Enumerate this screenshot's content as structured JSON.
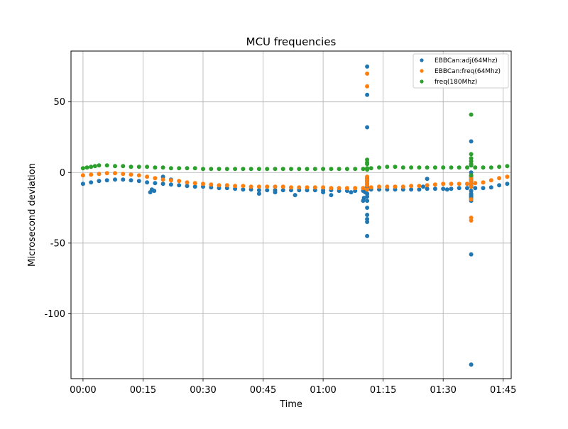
{
  "chart_data": {
    "type": "scatter",
    "title": "MCU frequencies",
    "xlabel": "Time",
    "ylabel": "Microsecond deviation",
    "x_unit": "minutes",
    "xlim": [
      -3,
      107
    ],
    "ylim": [
      -146,
      86
    ],
    "x_ticks": [
      {
        "value": 0,
        "label": "00:00"
      },
      {
        "value": 15,
        "label": "00:15"
      },
      {
        "value": 30,
        "label": "00:30"
      },
      {
        "value": 45,
        "label": "00:45"
      },
      {
        "value": 60,
        "label": "01:00"
      },
      {
        "value": 75,
        "label": "01:15"
      },
      {
        "value": 90,
        "label": "01:30"
      },
      {
        "value": 105,
        "label": "01:45"
      }
    ],
    "y_ticks": [
      {
        "value": 50,
        "label": "50"
      },
      {
        "value": 0,
        "label": "0"
      },
      {
        "value": -50,
        "label": "-50"
      },
      {
        "value": -100,
        "label": "-100"
      }
    ],
    "grid": true,
    "legend_position": "top-right",
    "series": [
      {
        "name": "EBBCan:adj(64Mhz)",
        "color": "#1f77b4",
        "x": [
          0,
          2,
          4,
          6,
          8,
          10,
          12,
          14,
          16,
          18,
          20,
          22,
          24,
          26,
          28,
          30,
          32,
          34,
          36,
          38,
          40,
          42,
          44,
          46,
          48,
          50,
          52,
          54,
          56,
          58,
          60,
          62,
          64,
          66,
          68,
          70,
          72,
          74,
          76,
          78,
          80,
          82,
          84,
          86,
          88,
          90,
          92,
          94,
          96,
          98,
          100,
          102,
          104,
          106,
          16.8,
          17.2,
          17.8,
          20,
          22,
          44,
          48,
          53,
          60,
          62,
          67,
          70,
          70.2,
          70.5,
          71,
          71,
          71,
          71,
          71,
          71,
          71,
          71,
          71,
          71,
          71,
          71,
          71,
          71,
          71,
          71,
          85,
          86,
          91,
          97,
          97,
          97,
          97,
          97,
          97,
          97,
          97,
          97,
          97,
          97,
          97,
          97,
          97,
          97,
          97,
          97
        ],
        "y": [
          -8,
          -7,
          -6,
          -5.5,
          -5,
          -5,
          -5.5,
          -6,
          -7,
          -7.5,
          -8,
          -8.5,
          -9,
          -9.5,
          -10,
          -10,
          -10.5,
          -11,
          -11,
          -11.5,
          -12,
          -12,
          -12.5,
          -12.5,
          -12.5,
          -12.5,
          -12.5,
          -12.5,
          -12.5,
          -12.5,
          -12.5,
          -12.5,
          -13,
          -13,
          -13,
          -13,
          -12,
          -12,
          -12,
          -12,
          -12,
          -12,
          -12,
          -11.5,
          -11.5,
          -11.5,
          -11.5,
          -11,
          -11,
          -11,
          -11,
          -10.5,
          -9,
          -8,
          -14,
          -12,
          -13,
          -3,
          -5,
          -15,
          -14,
          -16,
          -14,
          -16,
          -14,
          -20,
          -18,
          -14,
          75,
          55,
          32,
          -45,
          -30,
          -33,
          -35,
          -25,
          -20,
          -17,
          -15,
          -12,
          -10,
          -8,
          -6,
          -4,
          -10,
          -4.5,
          -12,
          22,
          5,
          0,
          -5,
          -10,
          -13,
          -15,
          -16,
          -18,
          -17,
          -20,
          -58,
          -136,
          -3,
          -6,
          -8,
          -9
        ],
        "values_source": "approximate, read from plot"
      },
      {
        "name": "EBBCan:freq(64Mhz)",
        "color": "#ff7f0e",
        "x": [
          0,
          2,
          4,
          6,
          8,
          10,
          12,
          14,
          16,
          18,
          20,
          22,
          24,
          26,
          28,
          30,
          32,
          34,
          36,
          38,
          40,
          42,
          44,
          46,
          48,
          50,
          52,
          54,
          56,
          58,
          60,
          62,
          64,
          66,
          68,
          70,
          72,
          74,
          76,
          78,
          80,
          82,
          84,
          86,
          88,
          90,
          92,
          94,
          96,
          98,
          100,
          102,
          104,
          106,
          71,
          71,
          71,
          71,
          71,
          71,
          71,
          97,
          97,
          97,
          97,
          97,
          97,
          97,
          97
        ],
        "y": [
          -2,
          -1.5,
          -1,
          -0.5,
          -0.5,
          -1,
          -1.5,
          -2,
          -3,
          -4,
          -5,
          -5.5,
          -6,
          -7,
          -7.5,
          -8,
          -8.5,
          -9,
          -9,
          -9.5,
          -9.5,
          -10,
          -10,
          -10,
          -10,
          -10,
          -10.5,
          -10.5,
          -10.5,
          -10.5,
          -10.5,
          -11,
          -11,
          -11,
          -11,
          -11,
          -10.5,
          -10,
          -10,
          -10,
          -10,
          -9.5,
          -9.5,
          -9,
          -8.5,
          -8,
          -8,
          -8,
          -8,
          -7.5,
          -7,
          -5.5,
          -4,
          -3,
          70,
          61,
          -3,
          -7,
          -12,
          -5,
          -9,
          -19,
          -32,
          -34,
          -6,
          -10,
          -8,
          -4,
          -2
        ]
      },
      {
        "name": "freq(180Mhz)",
        "color": "#2ca02c",
        "x": [
          0,
          1,
          2,
          3,
          4,
          6,
          8,
          10,
          12,
          14,
          16,
          18,
          20,
          22,
          24,
          26,
          28,
          30,
          32,
          34,
          36,
          38,
          40,
          42,
          44,
          46,
          48,
          50,
          52,
          54,
          56,
          58,
          60,
          62,
          64,
          66,
          68,
          70,
          72,
          74,
          76,
          78,
          80,
          82,
          84,
          86,
          88,
          90,
          92,
          94,
          96,
          98,
          100,
          102,
          104,
          106,
          71,
          71,
          71,
          71,
          71,
          97,
          97,
          97,
          97,
          97,
          97,
          97
        ],
        "y": [
          3,
          3.5,
          4,
          4.5,
          5,
          5,
          4.5,
          4.5,
          4,
          4,
          4,
          3.5,
          3.5,
          3,
          3,
          3,
          3,
          2.5,
          2.5,
          2.5,
          2.5,
          2.5,
          2.5,
          2.5,
          2.5,
          2.5,
          2.5,
          2.5,
          2.5,
          2.5,
          2.5,
          2.5,
          2.5,
          2.5,
          2.5,
          2.5,
          2.5,
          2.5,
          3,
          3.5,
          4,
          4,
          3.5,
          3.5,
          3.5,
          3.5,
          3.5,
          3.5,
          3.5,
          3.5,
          3.5,
          3.5,
          3.5,
          3.5,
          4,
          4.5,
          9,
          7,
          6,
          2,
          3,
          41,
          13,
          10,
          8,
          6,
          5,
          -2
        ]
      }
    ]
  }
}
